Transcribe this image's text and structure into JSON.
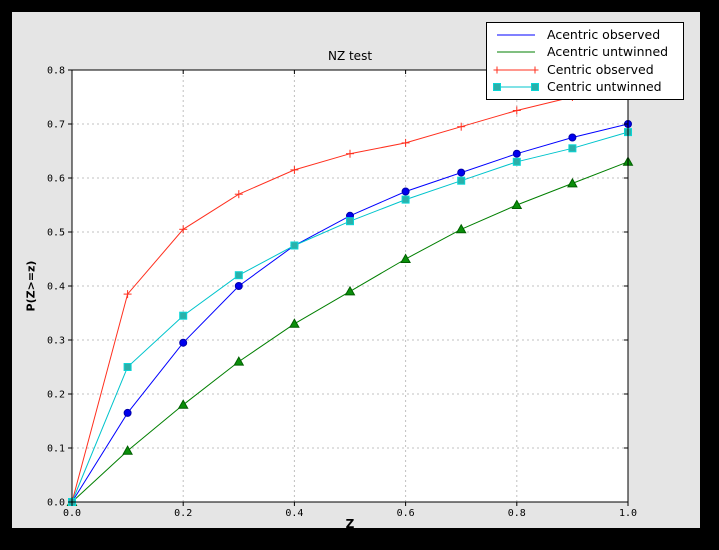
{
  "window": {
    "outer_bg": "#000000",
    "figure_bg": "#e5e5e5",
    "plot_bg": "#ffffff",
    "spine_color": "#000000",
    "grid_color": "#c0c0c0",
    "tick_label_color": "#000000"
  },
  "chart_data": {
    "type": "line",
    "title": "NZ test",
    "xlabel": "Z",
    "ylabel": "P(Z>=z)",
    "xlim": [
      0.0,
      1.0
    ],
    "ylim": [
      0.0,
      0.8
    ],
    "x_tick_labels": [
      "0.0",
      "0.2",
      "0.4",
      "0.6",
      "0.8",
      "1.0"
    ],
    "y_tick_labels": [
      "0.0",
      "0.1",
      "0.2",
      "0.3",
      "0.4",
      "0.5",
      "0.6",
      "0.7",
      "0.8"
    ],
    "grid": "dashed horizontal and vertical at major ticks",
    "legend_position": "upper right, box overlapping top-right plot corner",
    "x": [
      0.0,
      0.1,
      0.2,
      0.3,
      0.4,
      0.5,
      0.6,
      0.7,
      0.8,
      0.9,
      1.0
    ],
    "series": [
      {
        "name": "Acentric observed",
        "color": "#0000ff",
        "marker": "circle",
        "marker_fill": "#0000ee",
        "marker_edge": "#0000aa",
        "legend_sample_markers": false,
        "values": [
          0.0,
          0.165,
          0.295,
          0.4,
          0.475,
          0.53,
          0.575,
          0.61,
          0.645,
          0.675,
          0.7
        ]
      },
      {
        "name": "Acentric untwinned",
        "color": "#007f00",
        "marker": "triangle",
        "marker_fill": "#0a8f0a",
        "marker_edge": "#005f00",
        "legend_sample_markers": false,
        "values": [
          0.0,
          0.095,
          0.18,
          0.26,
          0.33,
          0.39,
          0.45,
          0.505,
          0.55,
          0.59,
          0.63
        ]
      },
      {
        "name": "Centric observed",
        "color": "#ff2f1e",
        "marker": "plus",
        "marker_fill": "#ff2f1e",
        "marker_edge": "#ff2f1e",
        "legend_sample_markers": true,
        "values": [
          0.0,
          0.385,
          0.505,
          0.57,
          0.615,
          0.645,
          0.665,
          0.695,
          0.725,
          0.75,
          0.775
        ]
      },
      {
        "name": "Centric untwinned",
        "color": "#00c4cc",
        "marker": "square",
        "marker_fill": "#2ab0aa",
        "marker_edge": "#0bd6d6",
        "legend_sample_markers": true,
        "values": [
          0.0,
          0.25,
          0.345,
          0.42,
          0.475,
          0.52,
          0.56,
          0.595,
          0.63,
          0.655,
          0.685
        ]
      }
    ]
  }
}
